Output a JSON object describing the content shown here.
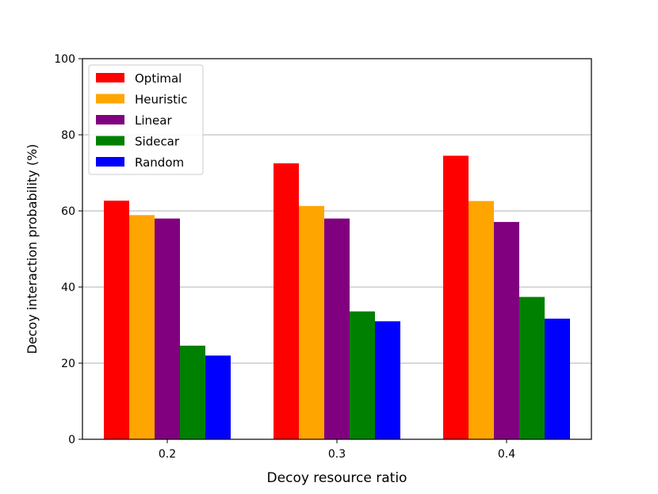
{
  "chart_data": {
    "type": "bar",
    "title": "",
    "xlabel": "Decoy resource ratio",
    "ylabel": "Decoy interaction probability (%)",
    "ylim": [
      0,
      100
    ],
    "yticks": [
      0,
      20,
      40,
      60,
      80,
      100
    ],
    "grid": "horizontal",
    "legend_position": "top-left",
    "categories": [
      "0.2",
      "0.3",
      "0.4"
    ],
    "series": [
      {
        "name": "Optimal",
        "color": "#ff0000",
        "values": [
          62.7,
          72.5,
          74.5
        ]
      },
      {
        "name": "Heuristic",
        "color": "#ffa500",
        "values": [
          58.9,
          61.3,
          62.6
        ]
      },
      {
        "name": "Linear",
        "color": "#800080",
        "values": [
          58.0,
          58.0,
          57.1
        ]
      },
      {
        "name": "Sidecar",
        "color": "#008000",
        "values": [
          24.6,
          33.6,
          37.4
        ]
      },
      {
        "name": "Random",
        "color": "#0000ff",
        "values": [
          22.0,
          31.0,
          31.7
        ]
      }
    ]
  }
}
